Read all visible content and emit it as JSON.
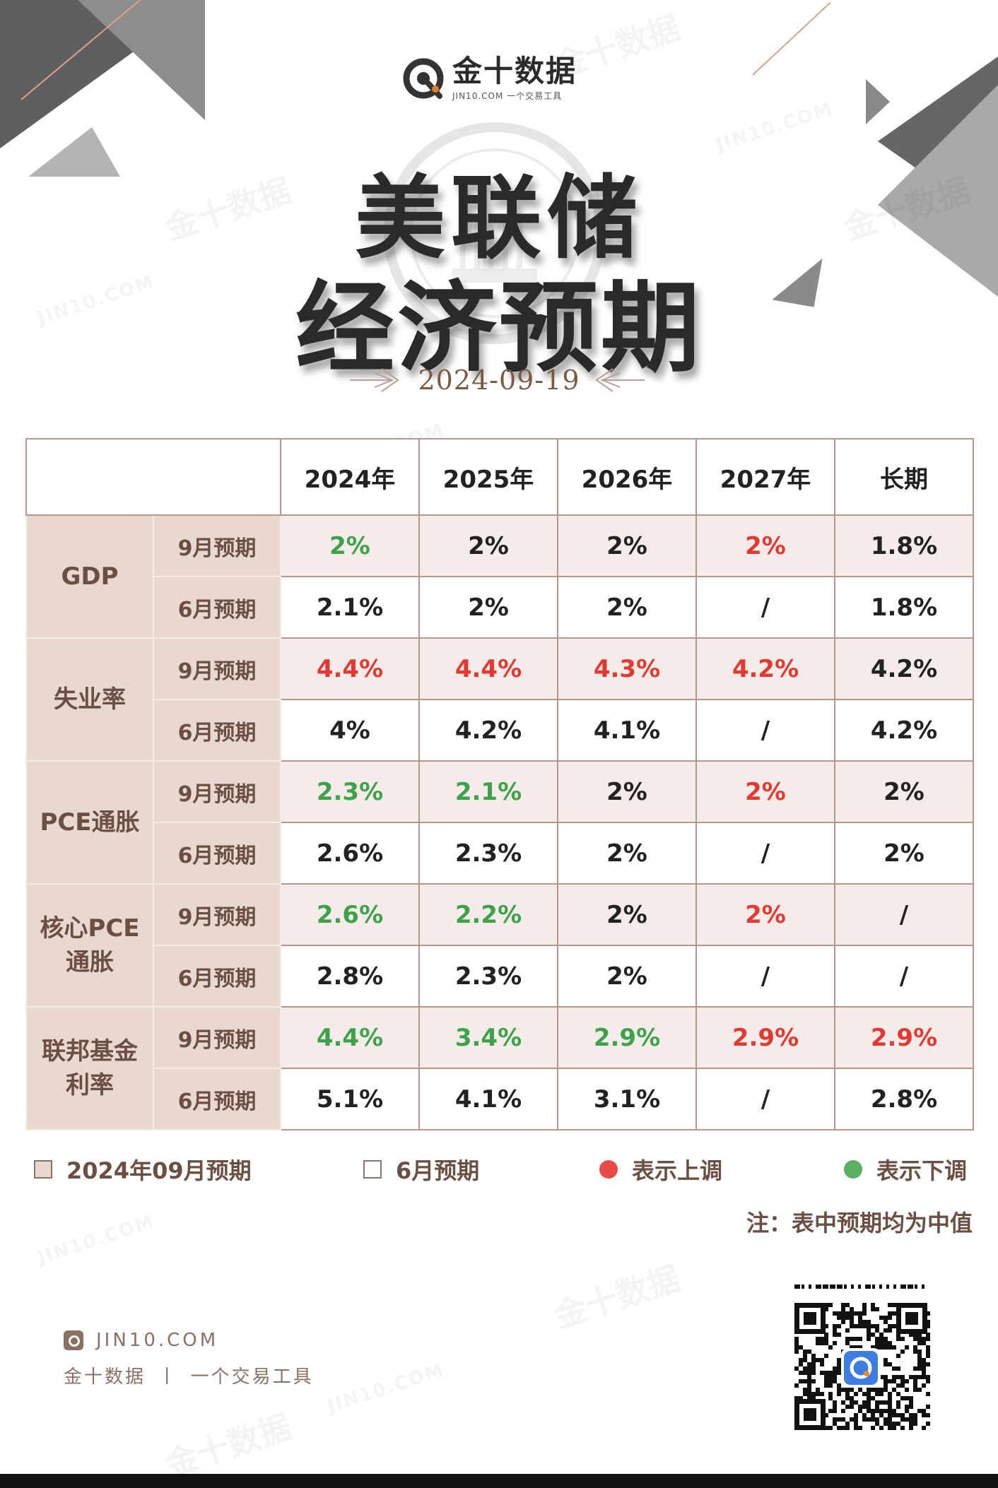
{
  "header": {
    "brand": "金十数据",
    "tagline": "JIN10.COM 一个交易工具",
    "title_line1": "美联储",
    "title_line2": "经济预期",
    "date": "2024-09-19"
  },
  "watermarks": {
    "brand": "金十数据",
    "site": "JIN10.COM"
  },
  "table": {
    "columns": [
      "2024年",
      "2025年",
      "2026年",
      "2027年",
      "长期"
    ],
    "groups": [
      {
        "category": "GDP",
        "rows": [
          {
            "label": "9月预期",
            "values": [
              "2%",
              "2%",
              "2%",
              "2%",
              "1.8%"
            ],
            "trend": [
              "down",
              "same",
              "same",
              "up",
              "same"
            ]
          },
          {
            "label": "6月预期",
            "values": [
              "2.1%",
              "2%",
              "2%",
              "/",
              "1.8%"
            ]
          }
        ]
      },
      {
        "category": "失业率",
        "rows": [
          {
            "label": "9月预期",
            "values": [
              "4.4%",
              "4.4%",
              "4.3%",
              "4.2%",
              "4.2%"
            ],
            "trend": [
              "up",
              "up",
              "up",
              "up",
              "same"
            ]
          },
          {
            "label": "6月预期",
            "values": [
              "4%",
              "4.2%",
              "4.1%",
              "/",
              "4.2%"
            ]
          }
        ]
      },
      {
        "category": "PCE通胀",
        "rows": [
          {
            "label": "9月预期",
            "values": [
              "2.3%",
              "2.1%",
              "2%",
              "2%",
              "2%"
            ],
            "trend": [
              "down",
              "down",
              "same",
              "up",
              "same"
            ]
          },
          {
            "label": "6月预期",
            "values": [
              "2.6%",
              "2.3%",
              "2%",
              "/",
              "2%"
            ]
          }
        ]
      },
      {
        "category_line1": "核心PCE",
        "category_line2": "通胀",
        "rows": [
          {
            "label": "9月预期",
            "values": [
              "2.6%",
              "2.2%",
              "2%",
              "2%",
              "/"
            ],
            "trend": [
              "down",
              "down",
              "same",
              "up",
              "same"
            ]
          },
          {
            "label": "6月预期",
            "values": [
              "2.8%",
              "2.3%",
              "2%",
              "/",
              "/"
            ]
          }
        ]
      },
      {
        "category_line1": "联邦基金",
        "category_line2": "利率",
        "rows": [
          {
            "label": "9月预期",
            "values": [
              "4.4%",
              "3.4%",
              "2.9%",
              "2.9%",
              "2.9%"
            ],
            "trend": [
              "down",
              "down",
              "down",
              "up",
              "up"
            ]
          },
          {
            "label": "6月预期",
            "values": [
              "5.1%",
              "4.1%",
              "3.1%",
              "/",
              "2.8%"
            ]
          }
        ]
      }
    ]
  },
  "legend": {
    "sept_label": "2024年09月预期",
    "june_label": "6月预期",
    "up_label": "表示上调",
    "down_label": "表示下调",
    "up_color": "#e23a32",
    "down_color": "#3ea24a",
    "sept_box_color": "#e8d8d0"
  },
  "note": "注：表中预期均为中值",
  "footer": {
    "site": "JIN10.COM",
    "brand": "金十数据",
    "tagline": "一个交易工具",
    "separator": "丨"
  }
}
